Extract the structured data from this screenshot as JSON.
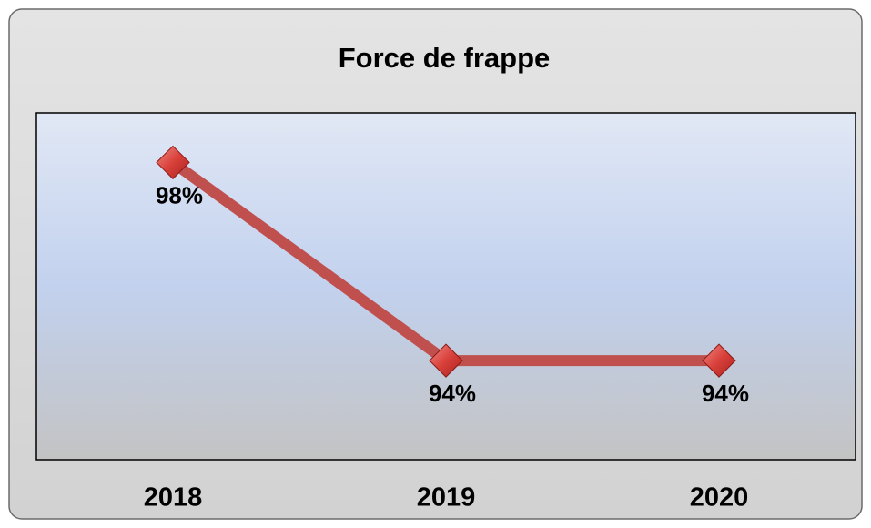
{
  "chart_data": {
    "type": "line",
    "title": "Force de frappe",
    "categories": [
      "2018",
      "2019",
      "2020"
    ],
    "series": [
      {
        "color": "#c0504d",
        "values": [
          98,
          94,
          94
        ],
        "value_labels": [
          "98%",
          "94%",
          "94%"
        ]
      }
    ],
    "ylim": [
      92,
      99
    ]
  }
}
